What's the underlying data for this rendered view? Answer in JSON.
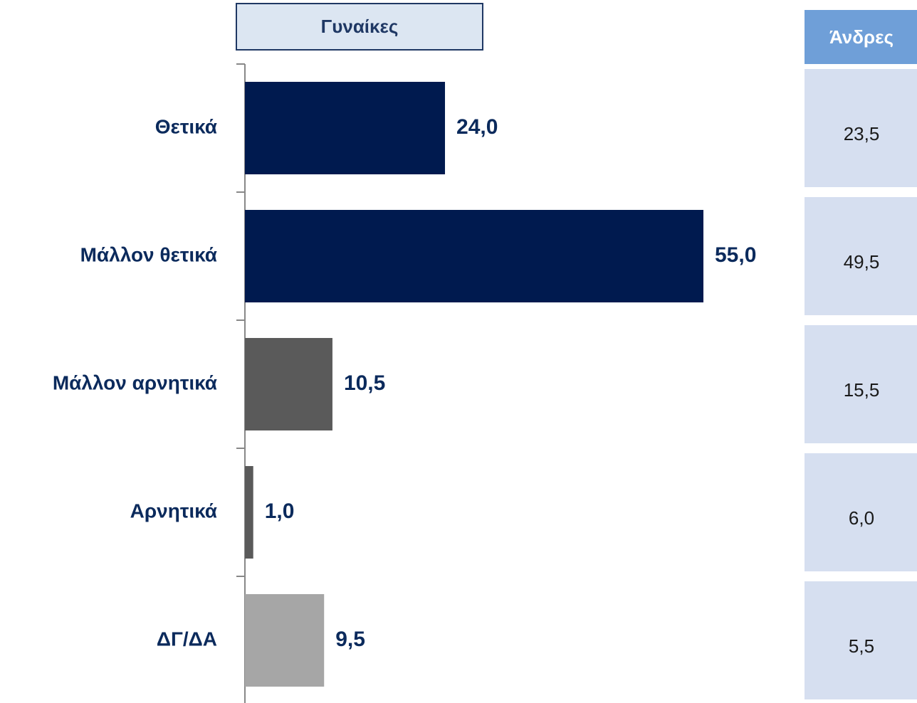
{
  "chart_data": {
    "type": "bar",
    "categories": [
      "Θετικά",
      "Μάλλον θετικά",
      "Μάλλον αρνητικά",
      "Αρνητικά",
      "ΔΓ/ΔΑ"
    ],
    "series": [
      {
        "name": "Γυναίκες",
        "colors": [
          "#001a4f",
          "#001a4f",
          "#5a5a5a",
          "#5a5a5a",
          "#a6a6a6"
        ],
        "values": [
          24.0,
          55.0,
          10.5,
          1.0,
          9.5
        ],
        "value_labels": [
          "24,0",
          "55,0",
          "10,5",
          "1,0",
          "9,5"
        ]
      },
      {
        "name": "Άνδρες",
        "values": [
          23.5,
          49.5,
          15.5,
          6.0,
          5.5
        ],
        "value_labels": [
          "23,5",
          "49,5",
          "15,5",
          "6,0",
          "5,5"
        ]
      }
    ]
  }
}
